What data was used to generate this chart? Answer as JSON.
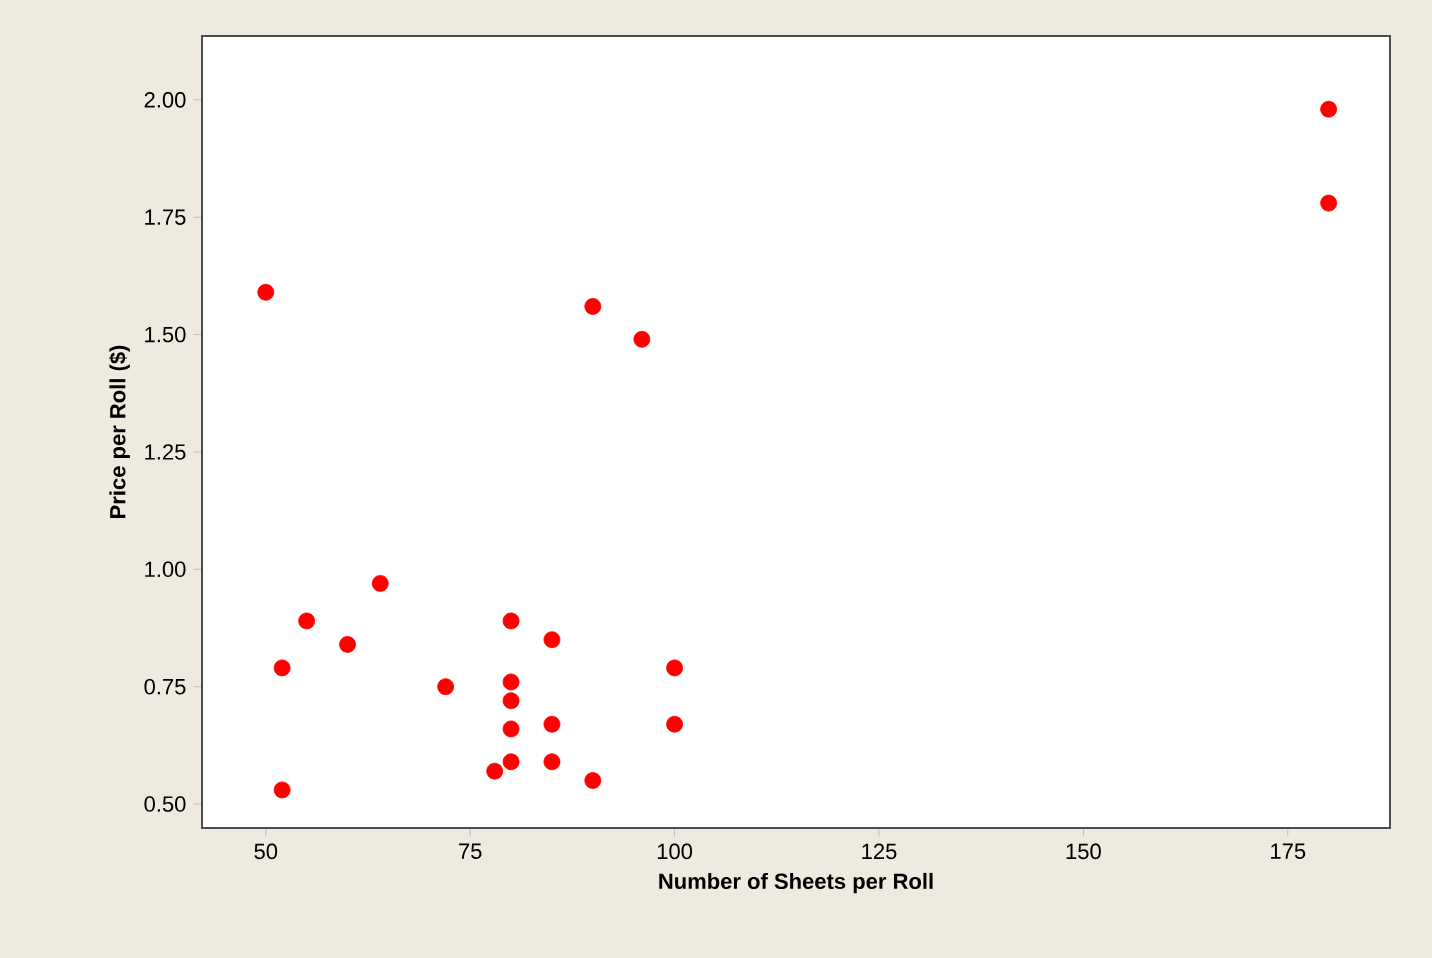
{
  "chart_data": {
    "type": "scatter",
    "xlabel": "Number of Sheets per Roll",
    "ylabel": "Price per Roll ($)",
    "x": [
      50,
      52,
      52,
      55,
      60,
      64,
      72,
      78,
      80,
      80,
      80,
      80,
      80,
      85,
      85,
      85,
      90,
      90,
      96,
      100,
      100,
      180,
      180
    ],
    "values": [
      1.59,
      0.79,
      0.53,
      0.89,
      0.84,
      0.97,
      0.75,
      0.57,
      0.89,
      0.76,
      0.72,
      0.66,
      0.59,
      0.85,
      0.67,
      0.59,
      0.55,
      1.56,
      1.49,
      0.79,
      0.67,
      1.98,
      1.78
    ],
    "color": "#ff0000",
    "xlim": [
      42.2,
      187.5
    ],
    "ylim": [
      0.449,
      2.136
    ],
    "xticks": [
      50,
      75,
      100,
      125,
      150,
      175
    ],
    "yticks": [
      {
        "value": 0.5,
        "label": "0.50"
      },
      {
        "value": 0.75,
        "label": "0.75"
      },
      {
        "value": 1.0,
        "label": "1.00"
      },
      {
        "value": 1.25,
        "label": "1.25"
      },
      {
        "value": 1.5,
        "label": "1.50"
      },
      {
        "value": 1.75,
        "label": "1.75"
      },
      {
        "value": 2.0,
        "label": "2.00"
      }
    ],
    "grid": false
  }
}
